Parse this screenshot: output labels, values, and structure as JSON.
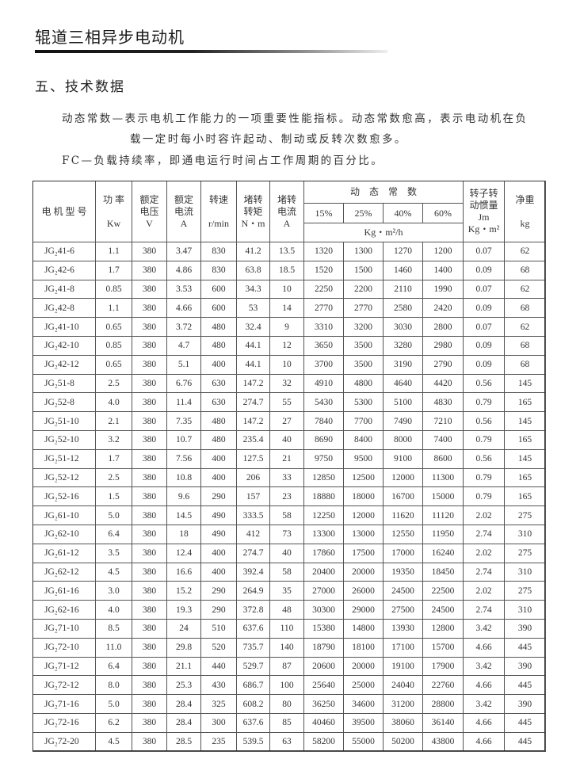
{
  "header": {
    "title": "辊道三相异步电动机"
  },
  "section": {
    "heading": "五、技术数据"
  },
  "notes": {
    "line1": "动态常数—表示电机工作能力的一项重要性能指标。动态常数愈高，表示电动机在负",
    "line2": "载一定时每小时容许起动、制动或反转次数愈多。",
    "line3": "FC—负载持续率，即通电运行时间占工作周期的百分比。"
  },
  "table": {
    "headers": {
      "model": "电 机 型 号",
      "power": "功 率",
      "power_unit": "Kw",
      "voltage": "额定电压",
      "voltage_unit": "V",
      "current": "额定电流",
      "current_unit": "A",
      "speed": "转速",
      "speed_unit": "r/min",
      "torque": "堵转转矩",
      "torque_unit": "N・m",
      "locked_current": "堵转电流",
      "locked_current_unit": "A",
      "dynamic": "动　态　常　数",
      "fc": [
        "15%",
        "25%",
        "40%",
        "60%"
      ],
      "dynamic_unit": "Kg・m²/h",
      "inertia": "转子转动惯量",
      "inertia_sym": "Jm",
      "inertia_unit": "Kg・m²",
      "weight": "净重",
      "weight_unit": "kg"
    },
    "rows": [
      [
        "JG₂41-6",
        "1.1",
        "380",
        "3.47",
        "830",
        "41.2",
        "13.5",
        "1320",
        "1300",
        "1270",
        "1200",
        "0.07",
        "62"
      ],
      [
        "JG₂42-6",
        "1.7",
        "380",
        "4.86",
        "830",
        "63.8",
        "18.5",
        "1520",
        "1500",
        "1460",
        "1400",
        "0.09",
        "68"
      ],
      [
        "JG₂41-8",
        "0.85",
        "380",
        "3.53",
        "600",
        "34.3",
        "10",
        "2250",
        "2200",
        "2110",
        "1990",
        "0.07",
        "62"
      ],
      [
        "JG₂42-8",
        "1.1",
        "380",
        "4.66",
        "600",
        "53",
        "14",
        "2770",
        "2770",
        "2580",
        "2420",
        "0.09",
        "68"
      ],
      [
        "JG₂41-10",
        "0.65",
        "380",
        "3.72",
        "480",
        "32.4",
        "9",
        "3310",
        "3200",
        "3030",
        "2800",
        "0.07",
        "62"
      ],
      [
        "JG₂42-10",
        "0.85",
        "380",
        "4.7",
        "480",
        "44.1",
        "12",
        "3650",
        "3500",
        "3280",
        "2980",
        "0.09",
        "68"
      ],
      [
        "JG₂42-12",
        "0.65",
        "380",
        "5.1",
        "400",
        "44.1",
        "10",
        "3700",
        "3500",
        "3190",
        "2790",
        "0.09",
        "68"
      ],
      [
        "JG₂51-8",
        "2.5",
        "380",
        "6.76",
        "630",
        "147.2",
        "32",
        "4910",
        "4800",
        "4640",
        "4420",
        "0.56",
        "145"
      ],
      [
        "JG₂52-8",
        "4.0",
        "380",
        "11.4",
        "630",
        "274.7",
        "55",
        "5430",
        "5300",
        "5100",
        "4830",
        "0.79",
        "165"
      ],
      [
        "JG₂51-10",
        "2.1",
        "380",
        "7.35",
        "480",
        "147.2",
        "27",
        "7840",
        "7700",
        "7490",
        "7210",
        "0.56",
        "145"
      ],
      [
        "JG₂52-10",
        "3.2",
        "380",
        "10.7",
        "480",
        "235.4",
        "40",
        "8690",
        "8400",
        "8000",
        "7400",
        "0.79",
        "165"
      ],
      [
        "JG₂51-12",
        "1.7",
        "380",
        "7.56",
        "400",
        "127.5",
        "21",
        "9750",
        "9500",
        "9100",
        "8600",
        "0.56",
        "145"
      ],
      [
        "JG₂52-12",
        "2.5",
        "380",
        "10.8",
        "400",
        "206",
        "33",
        "12850",
        "12500",
        "12000",
        "11300",
        "0.79",
        "165"
      ],
      [
        "JG₂52-16",
        "1.5",
        "380",
        "9.6",
        "290",
        "157",
        "23",
        "18880",
        "18000",
        "16700",
        "15000",
        "0.79",
        "165"
      ],
      [
        "JG₂61-10",
        "5.0",
        "380",
        "14.5",
        "490",
        "333.5",
        "58",
        "12250",
        "12000",
        "11620",
        "11120",
        "2.02",
        "275"
      ],
      [
        "JG₂62-10",
        "6.4",
        "380",
        "18",
        "490",
        "412",
        "73",
        "13300",
        "13000",
        "12550",
        "11950",
        "2.74",
        "310"
      ],
      [
        "JG₂61-12",
        "3.5",
        "380",
        "12.4",
        "400",
        "274.7",
        "40",
        "17860",
        "17500",
        "17000",
        "16240",
        "2.02",
        "275"
      ],
      [
        "JG₂62-12",
        "4.5",
        "380",
        "16.6",
        "400",
        "392.4",
        "58",
        "20400",
        "20000",
        "19350",
        "18450",
        "2.74",
        "310"
      ],
      [
        "JG₂61-16",
        "3.0",
        "380",
        "15.2",
        "290",
        "264.9",
        "35",
        "27000",
        "26000",
        "24500",
        "22500",
        "2.02",
        "275"
      ],
      [
        "JG₂62-16",
        "4.0",
        "380",
        "19.3",
        "290",
        "372.8",
        "48",
        "30300",
        "29000",
        "27500",
        "24500",
        "2.74",
        "310"
      ],
      [
        "JG₂71-10",
        "8.5",
        "380",
        "24",
        "510",
        "637.6",
        "110",
        "15380",
        "14800",
        "13930",
        "12800",
        "3.42",
        "390"
      ],
      [
        "JG₂72-10",
        "11.0",
        "380",
        "29.8",
        "520",
        "735.7",
        "140",
        "18790",
        "18100",
        "17100",
        "15700",
        "4.66",
        "445"
      ],
      [
        "JG₂71-12",
        "6.4",
        "380",
        "21.1",
        "440",
        "529.7",
        "87",
        "20600",
        "20000",
        "19100",
        "17900",
        "3.42",
        "390"
      ],
      [
        "JG₂72-12",
        "8.0",
        "380",
        "25.3",
        "430",
        "686.7",
        "100",
        "25640",
        "25000",
        "24040",
        "22760",
        "4.66",
        "445"
      ],
      [
        "JG₂71-16",
        "5.0",
        "380",
        "28.4",
        "325",
        "608.2",
        "80",
        "36250",
        "34600",
        "31200",
        "28800",
        "3.42",
        "390"
      ],
      [
        "JG₂72-16",
        "6.2",
        "380",
        "28.4",
        "300",
        "637.6",
        "85",
        "40460",
        "39500",
        "38060",
        "36140",
        "4.66",
        "445"
      ],
      [
        "JG₂72-20",
        "4.5",
        "380",
        "28.5",
        "235",
        "539.5",
        "63",
        "58200",
        "55000",
        "50200",
        "43800",
        "4.66",
        "445"
      ]
    ]
  }
}
